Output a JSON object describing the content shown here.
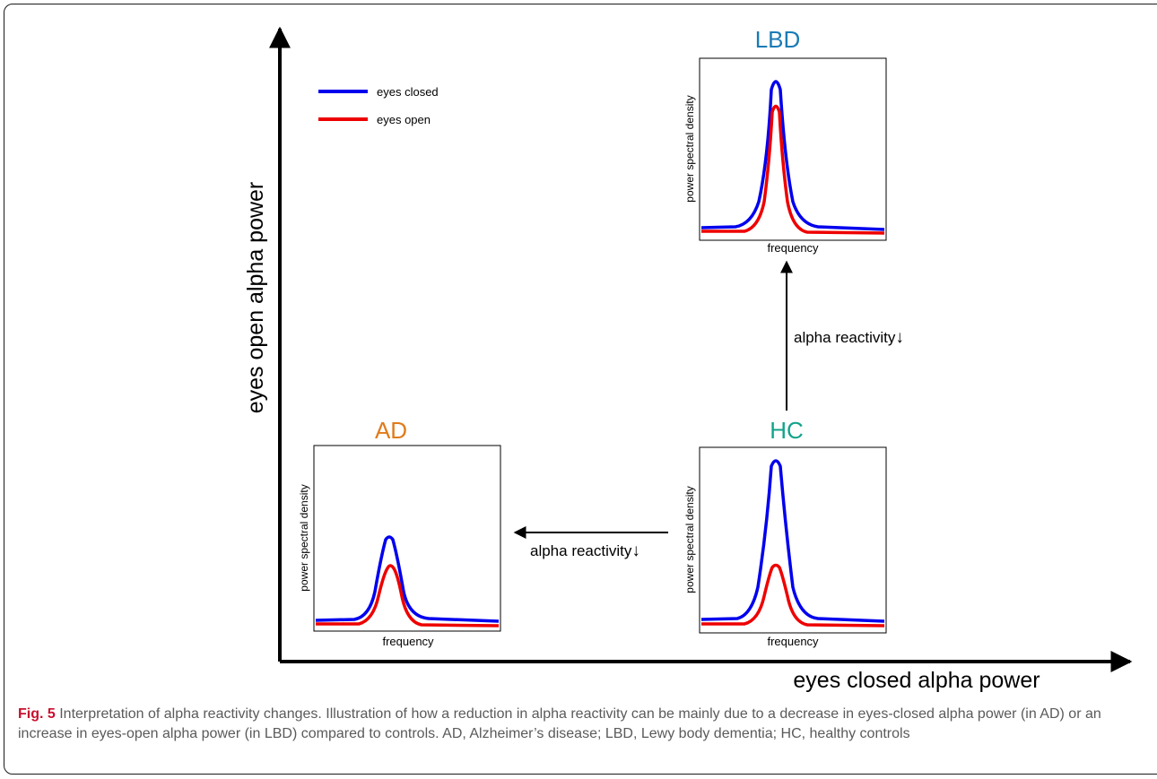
{
  "axes": {
    "y_label": "eyes open alpha power",
    "x_label": "eyes closed alpha power"
  },
  "legend": {
    "items": [
      {
        "label": "eyes closed",
        "color": "#0000ee"
      },
      {
        "label": "eyes open",
        "color": "#ee0000"
      }
    ]
  },
  "panels": {
    "lbd": {
      "title": "LBD",
      "title_color": "#1a7bb5",
      "xlabel": "frequency",
      "ylabel": "power spectral density"
    },
    "ad": {
      "title": "AD",
      "title_color": "#e07b1a",
      "xlabel": "frequency",
      "ylabel": "power spectral density"
    },
    "hc": {
      "title": "HC",
      "title_color": "#13a38a",
      "xlabel": "frequency",
      "ylabel": "power spectral density"
    }
  },
  "arrows": {
    "vertical_label": "alpha reactivity",
    "horizontal_label": "alpha reactivity",
    "down_glyph": "↓"
  },
  "caption": {
    "label": "Fig. 5",
    "text": " Interpretation of alpha reactivity changes. Illustration of how a reduction in alpha reactivity can be mainly due to a decrease in eyes-closed alpha power (in AD) or an increase in eyes-open alpha power (in LBD) compared to controls. AD, Alzheimer’s disease; LBD, Lewy body dementia; HC, healthy controls"
  }
}
